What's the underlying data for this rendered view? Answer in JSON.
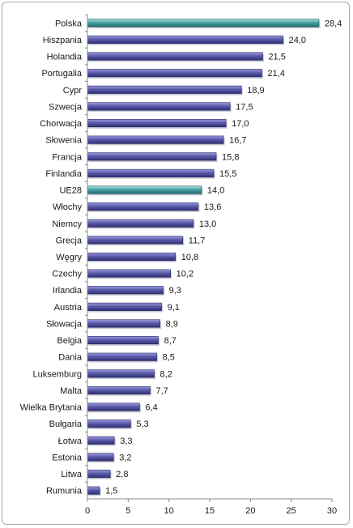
{
  "chart_data": {
    "type": "bar",
    "orientation": "horizontal",
    "categories": [
      "Polska",
      "Hiszpania",
      "Holandia",
      "Portugalia",
      "Cypr",
      "Szwecja",
      "Chorwacja",
      "Słowenia",
      "Francja",
      "Finlandia",
      "UE28",
      "Włochy",
      "Niemcy",
      "Grecja",
      "Węgry",
      "Czechy",
      "Irlandia",
      "Austria",
      "Słowacja",
      "Belgia",
      "Dania",
      "Luksemburg",
      "Malta",
      "Wielka Brytania",
      "Bułgaria",
      "Łotwa",
      "Estonia",
      "Litwa",
      "Rumunia"
    ],
    "values": [
      28.4,
      24.0,
      21.5,
      21.4,
      18.9,
      17.5,
      17.0,
      16.7,
      15.8,
      15.5,
      14.0,
      13.6,
      13.0,
      11.7,
      10.8,
      10.2,
      9.3,
      9.1,
      8.9,
      8.7,
      8.5,
      8.2,
      7.7,
      6.4,
      5.3,
      3.3,
      3.2,
      2.8,
      1.5
    ],
    "value_labels": [
      "28,4",
      "24,0",
      "21,5",
      "21,4",
      "18,9",
      "17,5",
      "17,0",
      "16,7",
      "15,8",
      "15,5",
      "14,0",
      "13,6",
      "13,0",
      "11,7",
      "10,8",
      "10,2",
      "9,3",
      "9,1",
      "8,9",
      "8,7",
      "8,5",
      "8,2",
      "7,7",
      "6,4",
      "5,3",
      "3,3",
      "3,2",
      "2,8",
      "1,5"
    ],
    "highlighted": [
      "Polska",
      "UE28"
    ],
    "xlim": [
      0,
      30
    ],
    "xticks": [
      0,
      5,
      10,
      15,
      20,
      25,
      30
    ],
    "title": "",
    "xlabel": "",
    "ylabel": "",
    "grid": false,
    "legend": "none",
    "colors": {
      "default_bar": "#5a5aa6",
      "highlight_bar": "#4aa3a3",
      "axis": "#888888"
    }
  }
}
